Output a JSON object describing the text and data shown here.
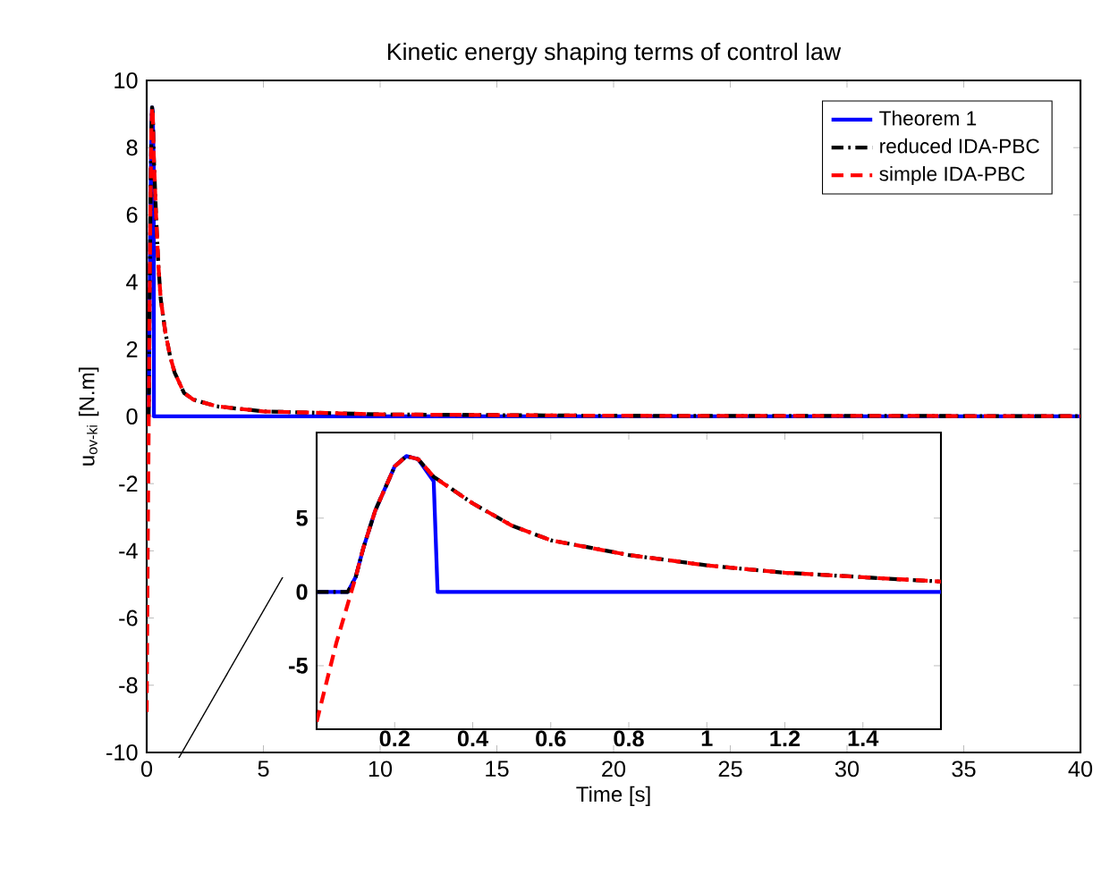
{
  "chart_data": [
    {
      "type": "line",
      "title": "Kinetic energy shaping terms of control law",
      "xlabel": "Time [s]",
      "ylabel": "u$_{ov-ki}$ [N.m]",
      "xlim": [
        0,
        40
      ],
      "ylim": [
        -10,
        10
      ],
      "xticks": [
        0,
        5,
        10,
        15,
        20,
        25,
        30,
        35,
        40
      ],
      "yticks": [
        -10,
        -8,
        -6,
        -4,
        -2,
        0,
        2,
        4,
        6,
        8,
        10
      ],
      "legend": "top right",
      "marker": "none",
      "series": [
        {
          "name": "Theorem 1",
          "color": "#0000ff",
          "line_style": "solid",
          "x": [
            0,
            0.08,
            0.1,
            0.12,
            0.15,
            0.2,
            0.23,
            0.26,
            0.3,
            0.31,
            1.6,
            40
          ],
          "values": [
            0,
            0,
            1,
            3,
            5.5,
            8.5,
            9.2,
            9.0,
            7.5,
            0,
            0,
            0
          ]
        },
        {
          "name": "reduced IDA-PBC",
          "color": "#000000",
          "line_style": "dashdot",
          "x": [
            0,
            0.05,
            0.08,
            0.1,
            0.12,
            0.15,
            0.2,
            0.23,
            0.26,
            0.3,
            0.4,
            0.5,
            0.6,
            0.8,
            1.0,
            1.2,
            1.4,
            1.6,
            2,
            3,
            5,
            10,
            20,
            40
          ],
          "values": [
            0,
            0,
            0,
            1,
            3,
            5.5,
            8.5,
            9.2,
            9.0,
            7.8,
            6.0,
            4.5,
            3.5,
            2.5,
            1.8,
            1.3,
            1.0,
            0.7,
            0.5,
            0.3,
            0.15,
            0.06,
            0.02,
            0.01
          ]
        },
        {
          "name": "simple IDA-PBC",
          "color": "#ff0000",
          "line_style": "dashed",
          "x": [
            0,
            0.05,
            0.08,
            0.1,
            0.12,
            0.15,
            0.2,
            0.23,
            0.26,
            0.3,
            0.4,
            0.5,
            0.6,
            0.8,
            1.0,
            1.2,
            1.4,
            1.6,
            2,
            3,
            5,
            10,
            20,
            40
          ],
          "values": [
            -8.8,
            -3.5,
            -0.8,
            1.0,
            3,
            5.5,
            8.5,
            9.2,
            9.0,
            7.8,
            6.0,
            4.5,
            3.5,
            2.5,
            1.8,
            1.3,
            1.0,
            0.7,
            0.5,
            0.3,
            0.15,
            0.06,
            0.02,
            0.01
          ]
        }
      ]
    },
    {
      "type": "line",
      "xlim": [
        0,
        1.6
      ],
      "ylim": [
        -9.3,
        10.8
      ],
      "xticks": [
        0.2,
        0.4,
        0.6,
        0.8,
        1,
        1.2,
        1.4
      ],
      "yticks": [
        -5,
        0,
        5
      ],
      "marker": "none",
      "series": [
        {
          "color": "#0000ff",
          "line_style": "solid",
          "x": [
            0,
            0.08,
            0.1,
            0.12,
            0.15,
            0.2,
            0.23,
            0.26,
            0.3,
            0.31,
            1.6
          ],
          "values": [
            0,
            0,
            1,
            3,
            5.5,
            8.5,
            9.2,
            9.0,
            7.5,
            0,
            0
          ]
        },
        {
          "color": "#000000",
          "line_style": "dashdot",
          "x": [
            0,
            0.05,
            0.08,
            0.1,
            0.12,
            0.15,
            0.2,
            0.23,
            0.26,
            0.3,
            0.4,
            0.5,
            0.6,
            0.8,
            1.0,
            1.2,
            1.4,
            1.6
          ],
          "values": [
            0,
            0,
            0,
            1,
            3,
            5.5,
            8.5,
            9.2,
            9.0,
            7.8,
            6.0,
            4.5,
            3.5,
            2.5,
            1.8,
            1.3,
            1.0,
            0.7
          ]
        },
        {
          "color": "#ff0000",
          "line_style": "dashed",
          "x": [
            0,
            0.05,
            0.08,
            0.1,
            0.12,
            0.15,
            0.2,
            0.23,
            0.26,
            0.3,
            0.4,
            0.5,
            0.6,
            0.8,
            1.0,
            1.2,
            1.4,
            1.6
          ],
          "values": [
            -8.8,
            -3.5,
            -0.8,
            1.0,
            3,
            5.5,
            8.5,
            9.2,
            9.0,
            7.8,
            6.0,
            4.5,
            3.5,
            2.5,
            1.8,
            1.3,
            1.0,
            0.7
          ]
        }
      ]
    }
  ]
}
